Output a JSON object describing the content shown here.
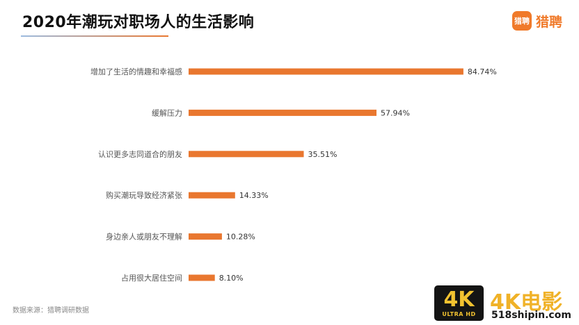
{
  "header": {
    "title": "2020年潮玩对职场人的生活影响",
    "brand_icon_text": "猎聘",
    "brand_name": "猎聘"
  },
  "colors": {
    "bar": "#e9772f",
    "rule_start": "#9bbbe0",
    "rule_end": "#e9772f",
    "brand": "#f07a2a",
    "label_text": "#555555"
  },
  "chart_data": {
    "type": "bar",
    "orientation": "horizontal",
    "categories": [
      "增加了生活的情趣和幸福感",
      "缓解压力",
      "认识更多志同道合的朋友",
      "购买潮玩导致经济紧张",
      "身边亲人或朋友不理解",
      "占用很大居住空间"
    ],
    "values": [
      84.74,
      57.94,
      35.51,
      14.33,
      10.28,
      8.1
    ],
    "value_labels": [
      "84.74%",
      "57.94%",
      "35.51%",
      "14.33%",
      "10.28%",
      "8.10%"
    ],
    "unit": "%",
    "xlim": [
      0,
      100
    ],
    "grid": false,
    "legend": "none"
  },
  "footer": {
    "source": "数据来源：猎聘调研数据"
  },
  "watermark": {
    "badge_main": "4K",
    "badge_sub": "ULTRA HD",
    "title": "4K电影",
    "site": "518shipin.com"
  }
}
